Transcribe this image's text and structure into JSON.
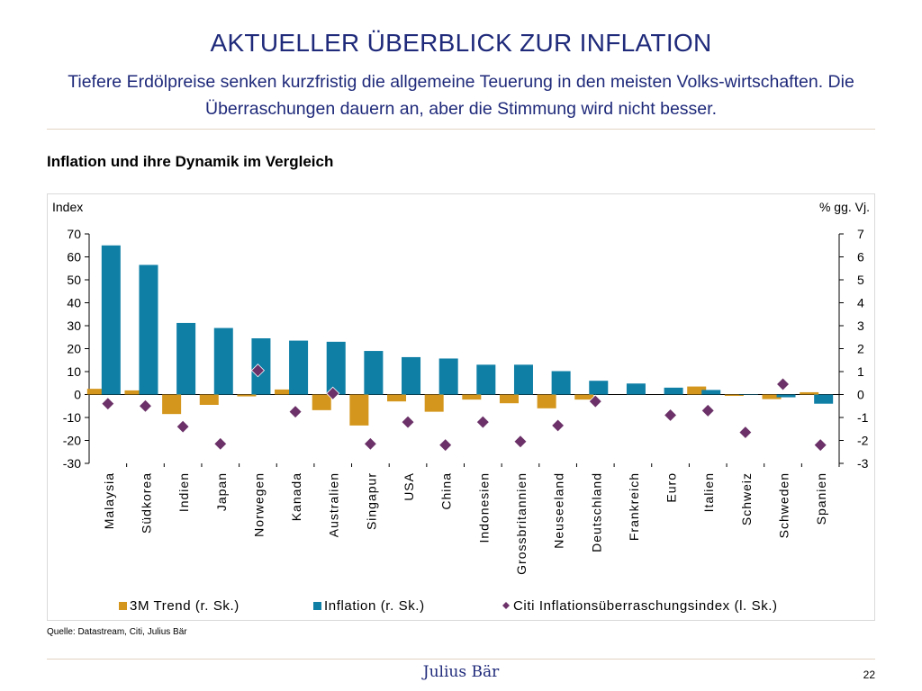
{
  "slide": {
    "title": "AKTUELLER ÜBERBLICK ZUR INFLATION",
    "subtitle": "Tiefere Erdölpreise senken kurzfristig die allgemeine Teuerung in den meisten Volks-wirtschaften. Die Überraschungen dauern an, aber die Stimmung wird nicht besser.",
    "source": "Quelle: Datastream, Citi, Julius Bär",
    "brand": "Julius Bär",
    "page_number": "22"
  },
  "chart_data": {
    "type": "bar",
    "title": "Inflation und ihre Dynamik im Vergleich",
    "left_axis_label": "Index",
    "right_axis_label": "% gg. Vj.",
    "left_ylim": [
      -30,
      70
    ],
    "right_ylim": [
      -3,
      7
    ],
    "left_ticks": [
      -30,
      -20,
      -10,
      0,
      10,
      20,
      30,
      40,
      50,
      60,
      70
    ],
    "right_ticks": [
      -3,
      -2,
      -1,
      0,
      1,
      2,
      3,
      4,
      5,
      6,
      7
    ],
    "categories": [
      "Malaysia",
      "Südkorea",
      "Indien",
      "Japan",
      "Norwegen",
      "Kanada",
      "Australien",
      "Singapur",
      "USA",
      "China",
      "Indonesien",
      "Grossbritannien",
      "Neuseeland",
      "Deutschland",
      "Frankreich",
      "Euro",
      "Italien",
      "Schweiz",
      "Schweden",
      "Spanien"
    ],
    "series": [
      {
        "name": "3M Trend (r. Sk.)",
        "kind": "bar",
        "axis": "right",
        "color": "#d4961c",
        "values": [
          0.25,
          0.18,
          -0.85,
          -0.45,
          -0.08,
          0.22,
          -0.68,
          -1.35,
          -0.3,
          -0.75,
          -0.22,
          -0.38,
          -0.6,
          -0.22,
          0.0,
          0.0,
          0.35,
          -0.06,
          -0.2,
          0.1
        ]
      },
      {
        "name": "Inflation (r. Sk.)",
        "kind": "bar",
        "axis": "right",
        "color": "#0f7fa6",
        "values": [
          6.5,
          5.65,
          3.12,
          2.9,
          2.45,
          2.35,
          2.3,
          1.9,
          1.63,
          1.57,
          1.3,
          1.3,
          1.02,
          0.6,
          0.48,
          0.3,
          0.2,
          -0.02,
          -0.12,
          -0.4
        ]
      },
      {
        "name": "Citi Inflationsüberraschungsindex (l. Sk.)",
        "kind": "marker",
        "axis": "left",
        "color": "#6b3168",
        "values": [
          -4,
          -5,
          -14,
          -21.5,
          10.5,
          -7.5,
          0.5,
          -21.5,
          -12,
          -22,
          -12,
          -20.5,
          -13.5,
          -3,
          null,
          -9,
          -7,
          -16.5,
          4.5,
          -22
        ]
      }
    ]
  }
}
